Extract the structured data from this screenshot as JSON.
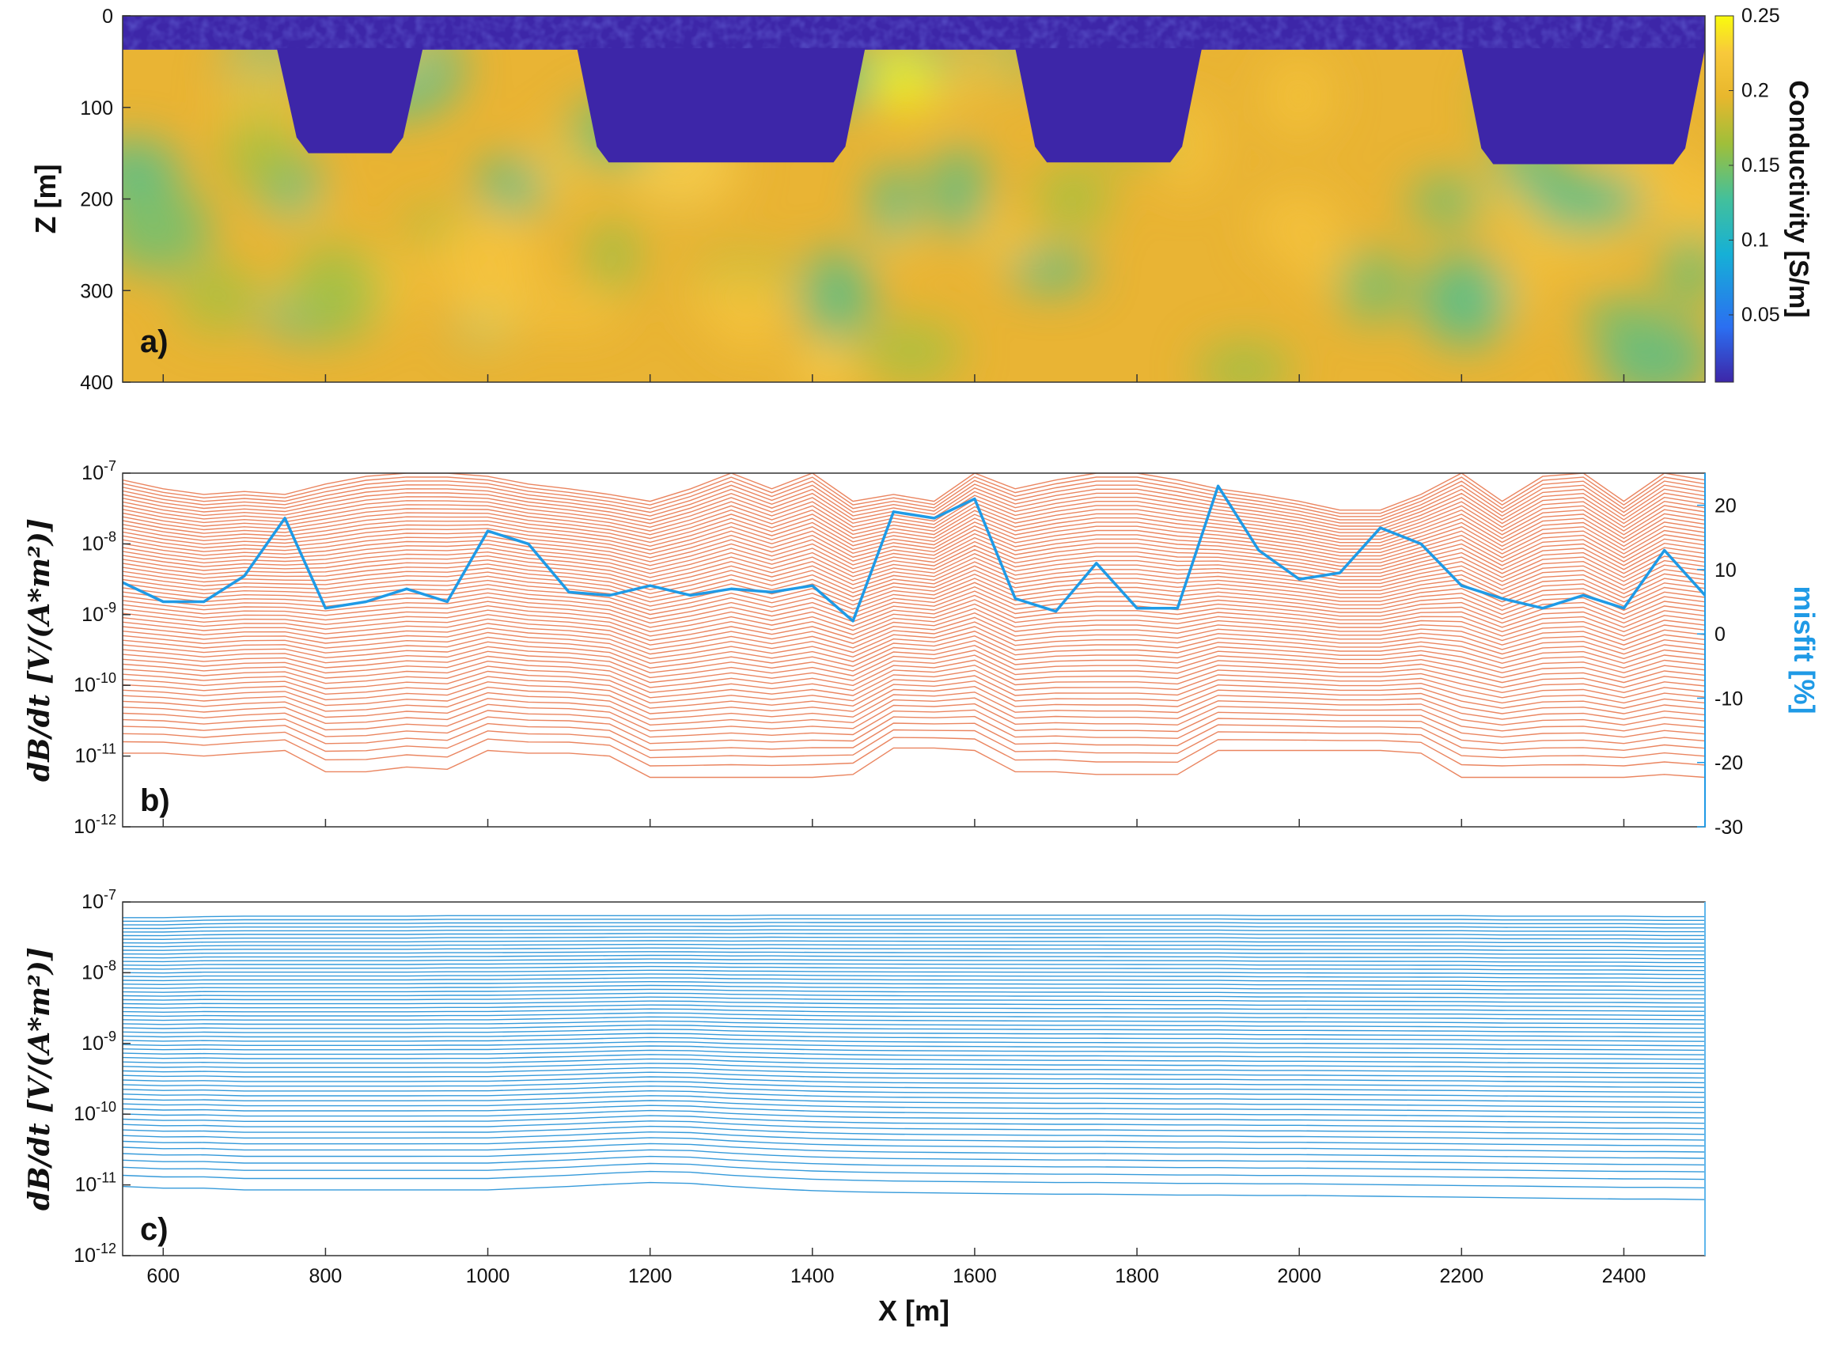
{
  "chart_data": [
    {
      "id": "a",
      "type": "heatmap",
      "panel_label": "a)",
      "ylabel": "Z [m]",
      "xlim": [
        550,
        2500
      ],
      "ylim": [
        0,
        400
      ],
      "y_reversed": true,
      "yticks": [
        "0",
        "100",
        "200",
        "300",
        "400"
      ],
      "colorbar": {
        "label": "Conductivity [S/m]",
        "range": [
          0.005,
          0.25
        ],
        "ticks": [
          "0.05",
          "0.1",
          "0.15",
          "0.2",
          "0.25"
        ],
        "colors": [
          "#3d26a8",
          "#2b6ff1",
          "#16b0d6",
          "#43c09b",
          "#9fbf3a",
          "#e8b72d",
          "#f8c93b",
          "#f9fb0e"
        ]
      },
      "water_layer": {
        "conductivity": 0.005,
        "depth_to_seabed_m": 37
      },
      "channels": [
        {
          "x_start": 740,
          "x_end": 920,
          "bottom_depth_m": 150
        },
        {
          "x_start": 1110,
          "x_end": 1465,
          "bottom_depth_m": 160
        },
        {
          "x_start": 1650,
          "x_end": 1880,
          "bottom_depth_m": 160
        },
        {
          "x_start": 2200,
          "x_end": 2500,
          "bottom_depth_m": 162
        }
      ],
      "background_conductivity_range": [
        0.13,
        0.25
      ]
    },
    {
      "id": "b",
      "type": "line",
      "panel_label": "b)",
      "ylabel": "dB/dt [V/(A*m²)]",
      "xlim": [
        550,
        2500
      ],
      "yscale": "log",
      "ylim": [
        1e-12,
        1e-07
      ],
      "yticks": [
        "10-12",
        "10-11",
        "10-10",
        "10-9",
        "10-8",
        "10-7"
      ],
      "series_color": "#e8784f",
      "n_curves": 60,
      "x": [
        550,
        600,
        650,
        700,
        750,
        800,
        850,
        900,
        950,
        1000,
        1050,
        1100,
        1150,
        1200,
        1250,
        1300,
        1350,
        1400,
        1450,
        1500,
        1550,
        1600,
        1650,
        1700,
        1750,
        1800,
        1850,
        1900,
        1950,
        2000,
        2050,
        2100,
        2150,
        2200,
        2250,
        2300,
        2350,
        2400,
        2450,
        2500
      ],
      "top_curve": [
        8e-08,
        6e-08,
        5e-08,
        5.5e-08,
        5e-08,
        7e-08,
        9e-08,
        1e-07,
        1e-07,
        9e-08,
        7e-08,
        6e-08,
        5e-08,
        4e-08,
        6e-08,
        1e-07,
        6e-08,
        1e-07,
        4e-08,
        5e-08,
        4e-08,
        1e-07,
        6e-08,
        8e-08,
        1e-07,
        1e-07,
        8e-08,
        6e-08,
        5e-08,
        4e-08,
        3e-08,
        3e-08,
        5e-08,
        1e-07,
        4e-08,
        9e-08,
        1e-07,
        4e-08,
        1e-07,
        8e-08
      ],
      "bottom_curve": [
        1.1e-11,
        1.1e-11,
        1e-11,
        1.1e-11,
        1.2e-11,
        6e-12,
        6e-12,
        7e-12,
        6.5e-12,
        1.2e-11,
        1.1e-11,
        1.1e-11,
        1e-11,
        5e-12,
        5e-12,
        5e-12,
        5e-12,
        5e-12,
        5.5e-12,
        1.3e-11,
        1.3e-11,
        1.2e-11,
        6e-12,
        6e-12,
        5.5e-12,
        5.5e-12,
        5.5e-12,
        1.2e-11,
        1.2e-11,
        1.2e-11,
        1.2e-11,
        1.2e-11,
        1.1e-11,
        5e-12,
        5e-12,
        5e-12,
        5e-12,
        5e-12,
        5.5e-12,
        5e-12
      ],
      "misfit": {
        "label": "misfit [%]",
        "color": "#1f9ae6",
        "ylim": [
          -30,
          25
        ],
        "yticks": [
          "-30",
          "-20",
          "-10",
          "0",
          "10",
          "20"
        ],
        "x": [
          550,
          600,
          650,
          700,
          750,
          800,
          850,
          900,
          950,
          1000,
          1050,
          1100,
          1150,
          1200,
          1250,
          1300,
          1350,
          1400,
          1450,
          1500,
          1550,
          1600,
          1650,
          1700,
          1750,
          1800,
          1850,
          1900,
          1950,
          2000,
          2050,
          2100,
          2150,
          2200,
          2250,
          2300,
          2350,
          2400,
          2450,
          2500
        ],
        "values": [
          8,
          5,
          5,
          9,
          18,
          4,
          5,
          7,
          5,
          16,
          14,
          6.5,
          6,
          7.5,
          6,
          7,
          6.5,
          7.5,
          2,
          19,
          18,
          21,
          5.5,
          3.5,
          11,
          4,
          4,
          23,
          13,
          8.5,
          9.5,
          16.5,
          14,
          7.5,
          5.5,
          4,
          6,
          4,
          13,
          6
        ]
      }
    },
    {
      "id": "c",
      "type": "line",
      "panel_label": "c)",
      "xlabel": "X [m]",
      "ylabel": "dB/dt [V/(A*m²)]",
      "xlim": [
        550,
        2500
      ],
      "xticks": [
        "600",
        "800",
        "1000",
        "1200",
        "1400",
        "1600",
        "1800",
        "2000",
        "2200",
        "2400"
      ],
      "yscale": "log",
      "ylim": [
        1e-12,
        1e-07
      ],
      "yticks": [
        "10-12",
        "10-11",
        "10-10",
        "10-9",
        "10-8",
        "10-7"
      ],
      "series_color": "#1f8fd6",
      "n_curves": 60,
      "x": [
        550,
        600,
        650,
        700,
        750,
        800,
        850,
        900,
        950,
        1000,
        1050,
        1100,
        1150,
        1200,
        1250,
        1300,
        1350,
        1400,
        1450,
        1500,
        1550,
        1600,
        1650,
        1700,
        1750,
        1800,
        1850,
        1900,
        1950,
        2000,
        2050,
        2100,
        2150,
        2200,
        2250,
        2300,
        2350,
        2400,
        2450,
        2500
      ],
      "top_curve": [
        6e-08,
        6e-08,
        6.2e-08,
        6.3e-08,
        6.3e-08,
        6.3e-08,
        6.3e-08,
        6.3e-08,
        6.4e-08,
        6.4e-08,
        6.4e-08,
        6.4e-08,
        6.4e-08,
        6.4e-08,
        6.4e-08,
        6.4e-08,
        6.5e-08,
        6.5e-08,
        6.5e-08,
        6.5e-08,
        6.5e-08,
        6.5e-08,
        6.5e-08,
        6.5e-08,
        6.5e-08,
        6.5e-08,
        6.5e-08,
        6.5e-08,
        6.4e-08,
        6.4e-08,
        6.4e-08,
        6.4e-08,
        6.4e-08,
        6.4e-08,
        6.3e-08,
        6.3e-08,
        6.3e-08,
        6.3e-08,
        6.2e-08,
        6.2e-08
      ],
      "bottom_curve": [
        9.5e-12,
        9e-12,
        9e-12,
        8.5e-12,
        8.5e-12,
        8.5e-12,
        8.5e-12,
        8.5e-12,
        8.5e-12,
        8.5e-12,
        9e-12,
        9.5e-12,
        1.02e-11,
        1.08e-11,
        1.05e-11,
        9.5e-12,
        8.8e-12,
        8.3e-12,
        8e-12,
        7.8e-12,
        7.7e-12,
        7.6e-12,
        7.5e-12,
        7.4e-12,
        7.4e-12,
        7.3e-12,
        7.2e-12,
        7.2e-12,
        7.1e-12,
        7.1e-12,
        7e-12,
        6.9e-12,
        6.8e-12,
        6.7e-12,
        6.6e-12,
        6.5e-12,
        6.4e-12,
        6.3e-12,
        6.3e-12,
        6.2e-12
      ]
    }
  ]
}
